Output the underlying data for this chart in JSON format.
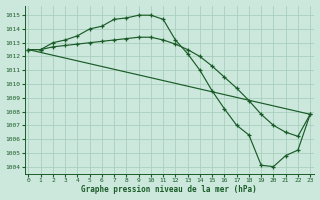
{
  "line1": {
    "x": [
      0,
      1,
      2,
      3,
      4,
      5,
      6,
      7,
      8,
      9,
      10,
      11,
      12,
      13,
      14,
      15,
      16,
      17,
      18,
      19,
      20,
      21,
      22,
      23
    ],
    "y": [
      1012.5,
      1012.5,
      1013.0,
      1013.2,
      1013.5,
      1014.0,
      1014.2,
      1014.7,
      1014.8,
      1015.0,
      1015.0,
      1014.7,
      1013.2,
      1012.2,
      1011.0,
      1009.5,
      1008.2,
      1007.0,
      1006.3,
      1004.1,
      1004.0,
      1004.8,
      1005.2,
      1007.8
    ]
  },
  "line2": {
    "x": [
      0,
      1,
      2,
      3,
      4,
      5,
      6,
      7,
      8,
      9,
      10,
      11,
      12,
      13,
      14,
      15,
      16,
      17,
      18,
      19,
      20,
      21,
      22,
      23
    ],
    "y": [
      1012.5,
      1012.5,
      1012.7,
      1012.8,
      1012.9,
      1013.0,
      1013.1,
      1013.2,
      1013.3,
      1013.4,
      1013.4,
      1013.2,
      1012.9,
      1012.5,
      1012.0,
      1011.3,
      1010.5,
      1009.7,
      1008.8,
      1007.8,
      1007.0,
      1006.5,
      1006.2,
      1007.8
    ]
  },
  "line3": {
    "x": [
      0,
      23
    ],
    "y": [
      1012.5,
      1007.8
    ]
  },
  "bg_color": "#cce8dc",
  "grid_color": "#aacfbf",
  "line_color": "#1a5c28",
  "marker": "+",
  "title": "Graphe pression niveau de la mer (hPa)",
  "xlim": [
    -0.3,
    23.3
  ],
  "ylim": [
    1003.5,
    1015.7
  ],
  "yticks": [
    1004,
    1005,
    1006,
    1007,
    1008,
    1009,
    1010,
    1011,
    1012,
    1013,
    1014,
    1015
  ],
  "xticks": [
    0,
    1,
    2,
    3,
    4,
    5,
    6,
    7,
    8,
    9,
    10,
    11,
    12,
    13,
    14,
    15,
    16,
    17,
    18,
    19,
    20,
    21,
    22,
    23
  ],
  "xlabel_fontsize": 5.5,
  "tick_fontsize": 4.5
}
